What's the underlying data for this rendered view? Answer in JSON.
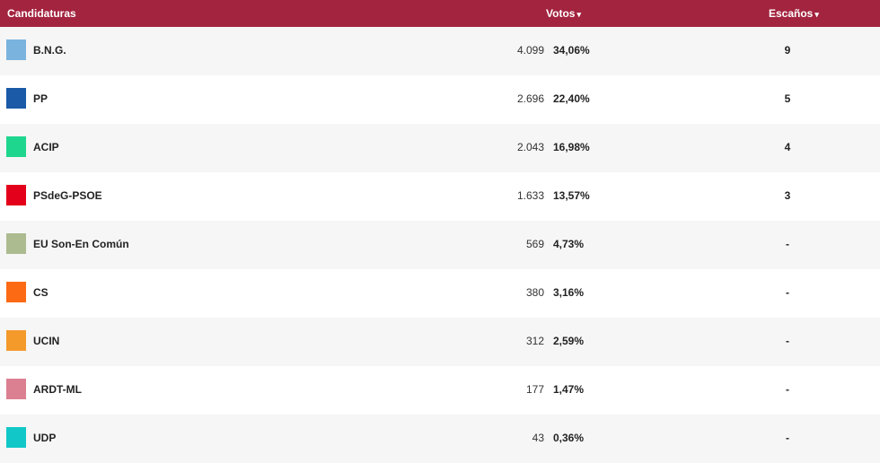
{
  "header": {
    "candidaturas": "Candidaturas",
    "votos": "Votos",
    "escanos": "Escaños",
    "sort_arrow": "▾"
  },
  "rows": [
    {
      "name": "B.N.G.",
      "votes": "4.099",
      "pct": "34,06%",
      "seats": "9",
      "color": "#7ab3de"
    },
    {
      "name": "PP",
      "votes": "2.696",
      "pct": "22,40%",
      "seats": "5",
      "color": "#1a5aa6"
    },
    {
      "name": "ACIP",
      "votes": "2.043",
      "pct": "16,98%",
      "seats": "4",
      "color": "#1fd68e"
    },
    {
      "name": "PSdeG-PSOE",
      "votes": "1.633",
      "pct": "13,57%",
      "seats": "3",
      "color": "#e3001b"
    },
    {
      "name": "EU Son-En Común",
      "votes": "569",
      "pct": "4,73%",
      "seats": "-",
      "color": "#adbb90"
    },
    {
      "name": "CS",
      "votes": "380",
      "pct": "3,16%",
      "seats": "-",
      "color": "#fd6a14"
    },
    {
      "name": "UCIN",
      "votes": "312",
      "pct": "2,59%",
      "seats": "-",
      "color": "#f39a2b"
    },
    {
      "name": "ARDT-ML",
      "votes": "177",
      "pct": "1,47%",
      "seats": "-",
      "color": "#db8091"
    },
    {
      "name": "UDP",
      "votes": "43",
      "pct": "0,36%",
      "seats": "-",
      "color": "#12c7c8"
    }
  ]
}
